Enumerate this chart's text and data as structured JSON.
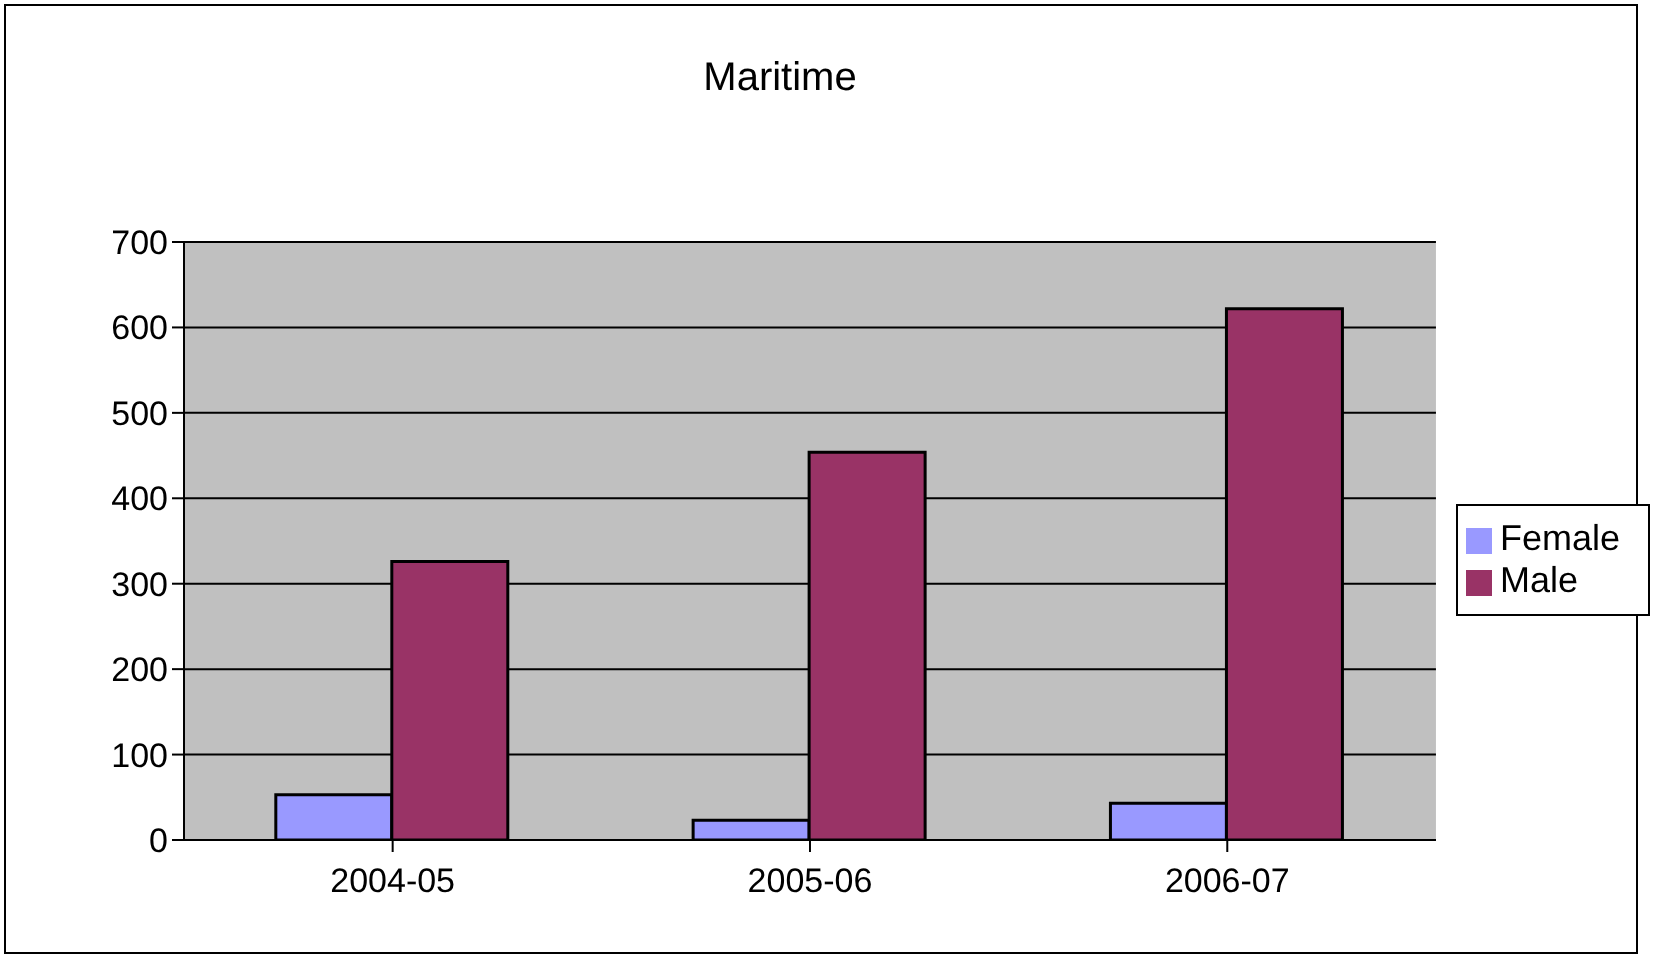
{
  "chart_data": {
    "type": "bar",
    "title": "Maritime",
    "categories": [
      "2004-05",
      "2005-06",
      "2006-07"
    ],
    "series": [
      {
        "name": "Female",
        "color": "#9999ff",
        "values": [
          53,
          23,
          43
        ]
      },
      {
        "name": "Male",
        "color": "#993366",
        "values": [
          326,
          454,
          622
        ]
      }
    ],
    "ylim": [
      0,
      700
    ],
    "yticks": [
      0,
      100,
      200,
      300,
      400,
      500,
      600,
      700
    ],
    "grid": "y",
    "legend": "right"
  }
}
